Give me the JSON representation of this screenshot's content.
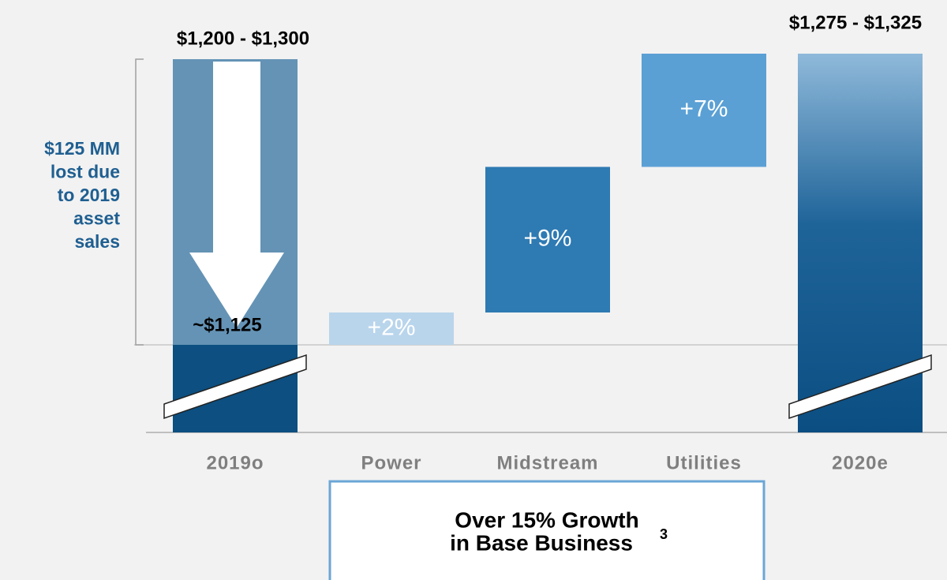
{
  "chart_data": {
    "type": "waterfall",
    "start": {
      "category": "2019o",
      "label": "~$1,125",
      "range_label": "$1,200 - $1,300"
    },
    "steps": [
      {
        "category": "Power",
        "value": 2,
        "value_label": "+2%",
        "color": "#b9d5ec"
      },
      {
        "category": "Midstream",
        "value": 9,
        "value_label": "+9%",
        "color": "#2e7ab3"
      },
      {
        "category": "Utilities",
        "value": 7,
        "value_label": "+7%",
        "color": "#5aa0d5"
      }
    ],
    "end": {
      "category": "2020e",
      "range_label": "$1,275 - $1,325"
    },
    "annotation": [
      "$125 MM",
      "lost due",
      "to 2019",
      "asset",
      "sales"
    ],
    "callout": {
      "text_lines": [
        "Over 15% Growth",
        "in Base Business"
      ],
      "footnote": "3"
    }
  }
}
